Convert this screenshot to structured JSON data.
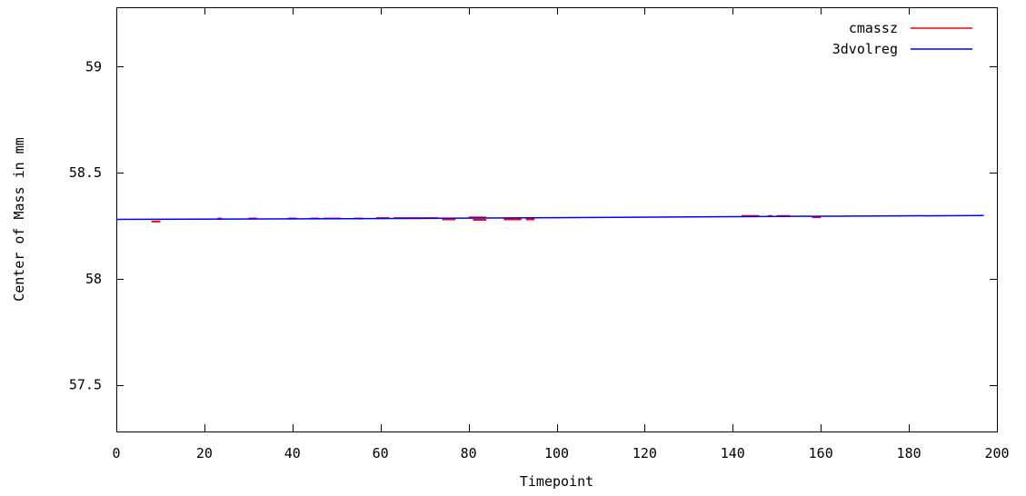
{
  "chart_data": {
    "type": "line",
    "title": "",
    "xlabel": "Timepoint",
    "ylabel": "Center of Mass in mm",
    "xlim": [
      0,
      200
    ],
    "ylim": [
      57.28,
      59.28
    ],
    "x_ticks": [
      0,
      20,
      40,
      60,
      80,
      100,
      120,
      140,
      160,
      180,
      200
    ],
    "y_ticks": [
      57.5,
      58,
      58.5,
      59
    ],
    "x_tick_labels": [
      "0",
      "20",
      "40",
      "60",
      "80",
      "100",
      "120",
      "140",
      "160",
      "180",
      "200"
    ],
    "y_tick_labels": [
      "57.5",
      "58",
      "58.5",
      "59"
    ],
    "grid": false,
    "legend_position": "top-right",
    "series": [
      {
        "name": "cmassz",
        "color": "#ff0000",
        "segments": [
          [
            8,
            58.27,
            10,
            58.27
          ],
          [
            23,
            58.284,
            24,
            58.284
          ],
          [
            30,
            58.284,
            32,
            58.284
          ],
          [
            39,
            58.284,
            41,
            58.284
          ],
          [
            44,
            58.284,
            46,
            58.284
          ],
          [
            47,
            58.284,
            49,
            58.284
          ],
          [
            49,
            58.284,
            51,
            58.284
          ],
          [
            54,
            58.284,
            56,
            58.284
          ],
          [
            59,
            58.286,
            62,
            58.286
          ],
          [
            63,
            58.286,
            65,
            58.286
          ],
          [
            65,
            58.286,
            70,
            58.286
          ],
          [
            70,
            58.286,
            73,
            58.286
          ],
          [
            74,
            58.28,
            77,
            58.28
          ],
          [
            80,
            58.289,
            84,
            58.289
          ],
          [
            81,
            58.278,
            84,
            58.278
          ],
          [
            88,
            58.28,
            90,
            58.28
          ],
          [
            90,
            58.28,
            92,
            58.28
          ],
          [
            93,
            58.28,
            95,
            58.28
          ],
          [
            142,
            58.296,
            146,
            58.296
          ],
          [
            148,
            58.296,
            149,
            58.296
          ],
          [
            150,
            58.296,
            153,
            58.296
          ],
          [
            158,
            58.29,
            160,
            58.29
          ]
        ]
      },
      {
        "name": "3dvolreg",
        "color": "#0000ff",
        "x": [
          0,
          50,
          100,
          150,
          197
        ],
        "y": [
          58.28,
          58.283,
          58.288,
          58.294,
          58.298
        ]
      }
    ]
  }
}
